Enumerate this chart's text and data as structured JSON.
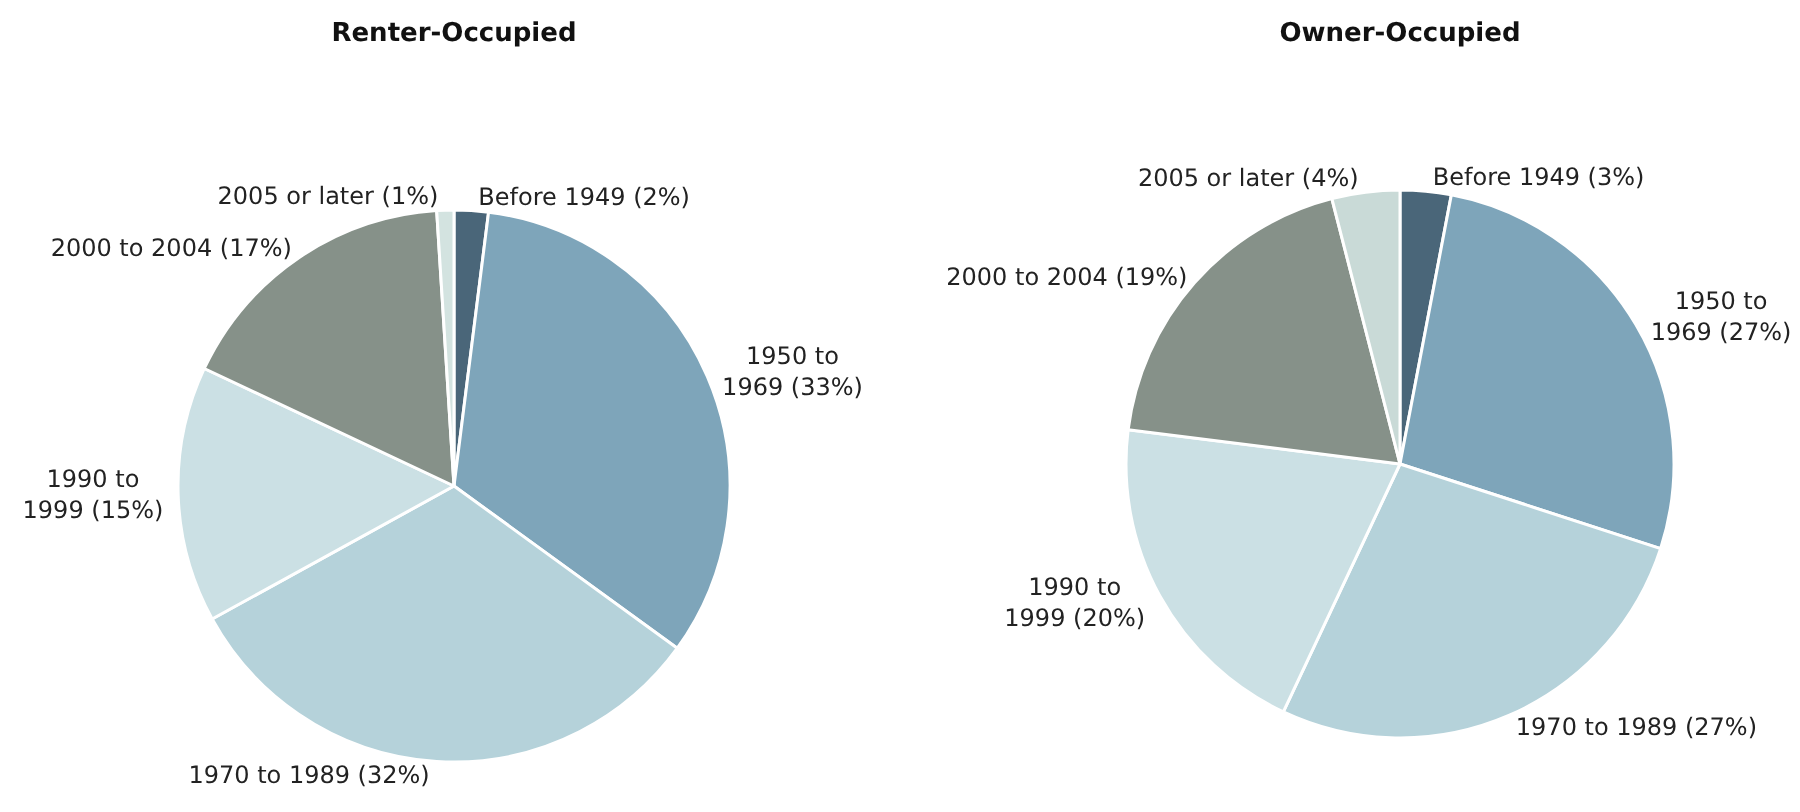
{
  "chart_data": [
    {
      "type": "pie",
      "title": "Renter-Occupied",
      "categories": [
        "Before 1949",
        "1950 to 1969",
        "1970 to 1989",
        "1990 to 1999",
        "2000 to 2004",
        "2005 or later"
      ],
      "values": [
        2,
        33,
        32,
        15,
        17,
        1
      ],
      "value_labels": [
        "(2%)",
        "(33%)",
        "(32%)",
        "(15%)",
        "(17%)",
        "(1%)"
      ],
      "colors": [
        "#4a6679",
        "#7ea5ba",
        "#b5d2da",
        "#cbe0e4",
        "#869189",
        "#d3e3e0"
      ]
    },
    {
      "type": "pie",
      "title": "Owner-Occupied",
      "categories": [
        "Before 1949",
        "1950 to 1969",
        "1970 to 1989",
        "1990 to 1999",
        "2000 to 2004",
        "2005 or later"
      ],
      "values": [
        3,
        27,
        27,
        20,
        19,
        4
      ],
      "value_labels": [
        "(3%)",
        "(27%)",
        "(27%)",
        "(20%)",
        "(19%)",
        "(4%)"
      ],
      "colors": [
        "#4a6679",
        "#7ea5ba",
        "#b5d2da",
        "#cbe0e4",
        "#869189",
        "#c9dad7"
      ]
    }
  ]
}
